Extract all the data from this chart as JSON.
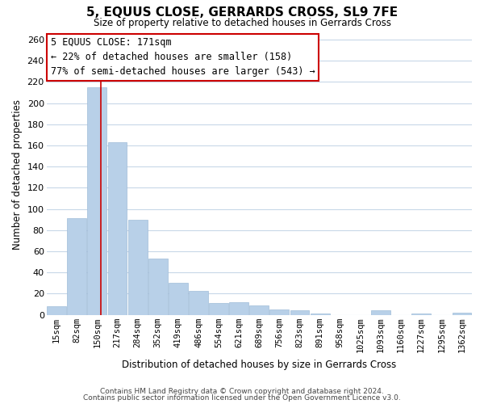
{
  "title": "5, EQUUS CLOSE, GERRARDS CROSS, SL9 7FE",
  "subtitle": "Size of property relative to detached houses in Gerrards Cross",
  "xlabel": "Distribution of detached houses by size in Gerrards Cross",
  "ylabel": "Number of detached properties",
  "bin_labels": [
    "15sqm",
    "82sqm",
    "150sqm",
    "217sqm",
    "284sqm",
    "352sqm",
    "419sqm",
    "486sqm",
    "554sqm",
    "621sqm",
    "689sqm",
    "756sqm",
    "823sqm",
    "891sqm",
    "958sqm",
    "1025sqm",
    "1093sqm",
    "1160sqm",
    "1227sqm",
    "1295sqm",
    "1362sqm"
  ],
  "bar_values": [
    8,
    91,
    215,
    163,
    90,
    53,
    30,
    23,
    11,
    12,
    9,
    5,
    4,
    1,
    0,
    0,
    4,
    0,
    1,
    0,
    2
  ],
  "bar_color": "#b8d0e8",
  "bar_edge_color": "#a0bcd8",
  "vline_color": "#cc0000",
  "vline_x": 2.18,
  "annotation_title": "5 EQUUS CLOSE: 171sqm",
  "annotation_line1": "← 22% of detached houses are smaller (158)",
  "annotation_line2": "77% of semi-detached houses are larger (543) →",
  "annotation_box_facecolor": "#ffffff",
  "annotation_box_edgecolor": "#cc0000",
  "ylim": [
    0,
    265
  ],
  "yticks": [
    0,
    20,
    40,
    60,
    80,
    100,
    120,
    140,
    160,
    180,
    200,
    220,
    240,
    260
  ],
  "footer_line1": "Contains HM Land Registry data © Crown copyright and database right 2024.",
  "footer_line2": "Contains public sector information licensed under the Open Government Licence v3.0.",
  "background_color": "#ffffff",
  "grid_color": "#c8d8e8",
  "title_fontsize": 11,
  "subtitle_fontsize": 8.5,
  "ylabel_fontsize": 8.5,
  "xlabel_fontsize": 8.5,
  "tick_fontsize": 8,
  "xtick_fontsize": 7.5,
  "ann_fontsize": 8.5,
  "footer_fontsize": 6.5
}
